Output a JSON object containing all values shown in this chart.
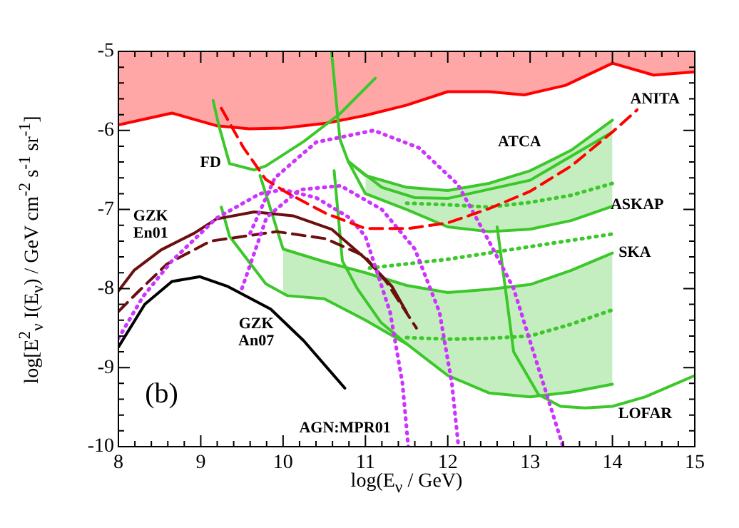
{
  "chart_data": {
    "type": "line",
    "xlabel": "log(E$_{ν}$ / GeV)",
    "ylabel": "log[E$^{2}$$_{ν}$ I(E$_{ν}$) / GeV cm$^{-2}$ s$^{-1}$ sr$^{-1}$]",
    "xlim": [
      8,
      15
    ],
    "ylim": [
      -10,
      -5
    ],
    "xticks": [
      8,
      {
        "value": 8.2,
        "label": null
      },
      {
        "value": 8.4,
        "label": null
      },
      {
        "value": 8.6,
        "label": null
      },
      {
        "value": 8.8,
        "label": null
      },
      9,
      {
        "value": 9.2,
        "label": null
      },
      {
        "value": 9.4,
        "label": null
      },
      {
        "value": 9.6,
        "label": null
      },
      {
        "value": 9.8,
        "label": null
      },
      10,
      {
        "value": 10.2,
        "label": null
      },
      {
        "value": 10.4,
        "label": null
      },
      {
        "value": 10.6,
        "label": null
      },
      {
        "value": 10.8,
        "label": null
      },
      11,
      {
        "value": 11.2,
        "label": null
      },
      {
        "value": 11.4,
        "label": null
      },
      {
        "value": 11.6,
        "label": null
      },
      {
        "value": 11.8,
        "label": null
      },
      12,
      {
        "value": 12.2,
        "label": null
      },
      {
        "value": 12.4,
        "label": null
      },
      {
        "value": 12.6,
        "label": null
      },
      {
        "value": 12.8,
        "label": null
      },
      13,
      {
        "value": 13.2,
        "label": null
      },
      {
        "value": 13.4,
        "label": null
      },
      {
        "value": 13.6,
        "label": null
      },
      {
        "value": 13.8,
        "label": null
      },
      14,
      {
        "value": 14.2,
        "label": null
      },
      {
        "value": 14.4,
        "label": null
      },
      {
        "value": 14.6,
        "label": null
      },
      {
        "value": 14.8,
        "label": null
      },
      15
    ],
    "yticks": [
      -10,
      {
        "value": -9.8,
        "label": null
      },
      {
        "value": -9.6,
        "label": null
      },
      {
        "value": -9.4,
        "label": null
      },
      {
        "value": -9.2,
        "label": null
      },
      -9,
      {
        "value": -8.8,
        "label": null
      },
      {
        "value": -8.6,
        "label": null
      },
      {
        "value": -8.4,
        "label": null
      },
      {
        "value": -8.2,
        "label": null
      },
      -8,
      {
        "value": -7.8,
        "label": null
      },
      {
        "value": -7.6,
        "label": null
      },
      {
        "value": -7.4,
        "label": null
      },
      {
        "value": -7.2,
        "label": null
      },
      -7,
      {
        "value": -6.8,
        "label": null
      },
      {
        "value": -6.6,
        "label": null
      },
      {
        "value": -6.4,
        "label": null
      },
      {
        "value": -6.2,
        "label": null
      },
      -6,
      {
        "value": -5.8,
        "label": null
      },
      {
        "value": -5.6,
        "label": null
      },
      {
        "value": -5.4,
        "label": null
      },
      {
        "value": -5.2,
        "label": null
      },
      -5
    ],
    "series": [
      {
        "type": "area",
        "color": "#ff0000",
        "x": [
          8,
          8.65,
          9.19,
          9.59,
          10,
          10.52,
          11,
          11.5,
          12,
          12.5,
          12.93,
          13.43,
          14,
          14.5,
          15
        ],
        "values": [
          -5.93,
          -5.78,
          -5.94,
          -5.98,
          -5.97,
          -5.91,
          -5.81,
          -5.68,
          -5.51,
          -5.51,
          -5.55,
          -5.43,
          -5.15,
          -5.3,
          -5.26
        ]
      },
      {
        "color": "#3cc82a",
        "x": [
          9.15,
          9.22,
          9.35,
          9.65,
          9.79,
          10.25,
          10.69,
          11.12
        ],
        "values": [
          -5.62,
          -5.94,
          -6.42,
          -6.5,
          -6.45,
          -6.14,
          -5.79,
          -5.34
        ]
      },
      {
        "color": "#3cc82a",
        "x": [
          10.59,
          10.69,
          10.79,
          11,
          11.5,
          12,
          12.5,
          13,
          13.5,
          14
        ],
        "values": [
          -5.02,
          -6.11,
          -6.39,
          -6.57,
          -6.72,
          -6.76,
          -6.67,
          -6.51,
          -6.25,
          -5.87
        ]
      },
      {
        "color": "#3cc82a",
        "x": [
          10.79,
          11,
          11.5,
          12,
          12.5,
          13,
          13.5,
          14
        ],
        "values": [
          -6.39,
          -6.8,
          -7,
          -7.22,
          -7.28,
          -7.25,
          -7.14,
          -6.96
        ]
      },
      {
        "color": "#3cc82a",
        "x": [
          10.79,
          11.2,
          11.6,
          12,
          13,
          14
        ],
        "values": [
          -6.39,
          -6.72,
          -6.85,
          -6.86,
          -6.63,
          -6.02
        ]
      },
      {
        "color": "#3cc82a",
        "line_style": "dotted",
        "x": [
          11,
          11.5,
          12,
          12.5,
          13,
          13.5,
          14
        ],
        "values": [
          null,
          -6.92,
          -6.94,
          -6.97,
          -6.91,
          -6.82,
          -6.67
        ],
        "upper": [
          -6.57,
          -6.72,
          -6.76,
          -6.67,
          -6.51,
          -6.25,
          -5.87
        ],
        "lower": [
          -6.8,
          -7,
          -7.22,
          -7.28,
          -7.25,
          -7.14,
          -6.96
        ]
      },
      {
        "color": "#3cc82a",
        "x": [
          9.72,
          10,
          10.5,
          11,
          11.5,
          12,
          12.5,
          13,
          13.5,
          14
        ],
        "values": [
          -6.57,
          -7.5,
          -7.66,
          -7.8,
          -7.96,
          -8.05,
          -8.01,
          -7.95,
          -7.77,
          -7.55
        ]
      },
      {
        "color": "#3cc82a",
        "x": [
          9.25,
          9.35,
          9.79,
          10.05,
          10.5,
          11,
          11.5,
          12,
          12.5,
          13,
          13.5,
          14
        ],
        "values": [
          -6.97,
          -7.34,
          -7.94,
          -8.09,
          -8.13,
          -8.4,
          -8.7,
          -9.1,
          -9.32,
          -9.37,
          -9.31,
          -9.21
        ]
      },
      {
        "color": "#3cc82a",
        "line_style": "dotted",
        "x": [
          10,
          10.5,
          11,
          11.5,
          12,
          12.5,
          13,
          13.5,
          14
        ],
        "values": [
          null,
          null,
          null,
          -8.62,
          -8.64,
          -8.63,
          -8.6,
          -8.45,
          -8.27
        ],
        "upper": [
          -7.5,
          -7.66,
          -7.8,
          -7.96,
          -8.05,
          -8.01,
          -7.95,
          -7.77,
          -7.55
        ],
        "lower": [
          -8.09,
          -8.13,
          -8.4,
          -8.7,
          -9.1,
          -9.32,
          -9.37,
          -9.31,
          -9.21
        ]
      },
      {
        "color": "#3cc82a",
        "line_style": "dotted",
        "x": [
          11.05,
          12,
          13,
          14
        ],
        "values": [
          -7.74,
          -7.63,
          -7.47,
          -7.31
        ]
      },
      {
        "color": "#3cc82a",
        "x": [
          10.62,
          10.72,
          10.9,
          11.19,
          11.5
        ],
        "values": [
          -6.51,
          -7.65,
          -8,
          -8.43,
          -8.7
        ]
      },
      {
        "color": "#3cc82a",
        "x": [
          12.6,
          12.7,
          12.8,
          13.1,
          13.37,
          13.67,
          14,
          14.4,
          15
        ],
        "values": [
          -7.22,
          -8,
          -8.8,
          -9.34,
          -9.49,
          -9.51,
          -9.49,
          -9.37,
          -9.1
        ]
      },
      {
        "color": "#6b0f0f",
        "x": [
          8,
          8.19,
          8.52,
          8.92,
          9.19,
          9.65,
          10.12,
          10.59,
          11,
          11.32,
          11.5
        ],
        "values": [
          -8.03,
          -7.77,
          -7.51,
          -7.3,
          -7.12,
          -7.03,
          -7.08,
          -7.25,
          -7.62,
          -7.97,
          -8.3
        ]
      },
      {
        "color": "#6b0f0f",
        "line_style": "dashed",
        "x": [
          8,
          8.25,
          8.59,
          9.12,
          9.52,
          9.92,
          10.52,
          10.99,
          11.25,
          11.62
        ],
        "values": [
          -8.29,
          -8.03,
          -7.69,
          -7.4,
          -7.34,
          -7.28,
          -7.37,
          -7.59,
          -7.91,
          -8.5
        ]
      },
      {
        "color": "#000000",
        "x": [
          8,
          8.32,
          8.65,
          8.99,
          9.32,
          9.85,
          10.25,
          10.75
        ],
        "values": [
          -8.74,
          -8.2,
          -7.91,
          -7.85,
          -7.97,
          -8.26,
          -8.66,
          -9.26
        ]
      },
      {
        "color": "#cc33ff",
        "line_style": "dotted",
        "x": [
          8,
          8.3,
          8.65,
          9.19,
          9.72,
          10,
          10.4,
          10.8,
          11,
          11.3,
          11.45,
          11.52
        ],
        "values": [
          -8.63,
          -8.1,
          -7.65,
          -7.11,
          -6.8,
          -6.75,
          -6.85,
          -7.1,
          -7.34,
          -8.3,
          -9.2,
          -10
        ]
      },
      {
        "color": "#cc33ff",
        "line_style": "dotted",
        "x": [
          9.5,
          9.8,
          10.2,
          10.7,
          11.2,
          11.6,
          11.9,
          12.05,
          12.13
        ],
        "values": [
          -8,
          -7.1,
          -6.75,
          -6.7,
          -7,
          -7.5,
          -8.3,
          -9.2,
          -10
        ]
      },
      {
        "color": "#cc33ff",
        "line_style": "dotted",
        "x": [
          9.6,
          9.9,
          10.4,
          11.1,
          11.65,
          12.12,
          12.5,
          12.8,
          13.1,
          13.4
        ],
        "values": [
          -7.3,
          -6.6,
          -6.15,
          -6,
          -6.22,
          -6.68,
          -7.4,
          -8,
          -9,
          -10
        ]
      },
      {
        "color": "#ff0000",
        "line_style": "dashed",
        "x": [
          9.25,
          9.52,
          9.79,
          10.05,
          10.52,
          11,
          11.52,
          12,
          12.5,
          13,
          13.5,
          14,
          14.3
        ],
        "values": [
          -5.72,
          -6.22,
          -6.62,
          -6.79,
          -7.05,
          -7.24,
          -7.24,
          -7.17,
          -6.99,
          -6.77,
          -6.45,
          -6.02,
          -5.74
        ]
      }
    ],
    "annotations": [
      "FD",
      "ATCA",
      "ANITA",
      "ASKAP",
      "SKA",
      "LOFAR",
      "GZK En01",
      "GZK An07",
      "AGN:MPR01",
      "(b)"
    ]
  }
}
